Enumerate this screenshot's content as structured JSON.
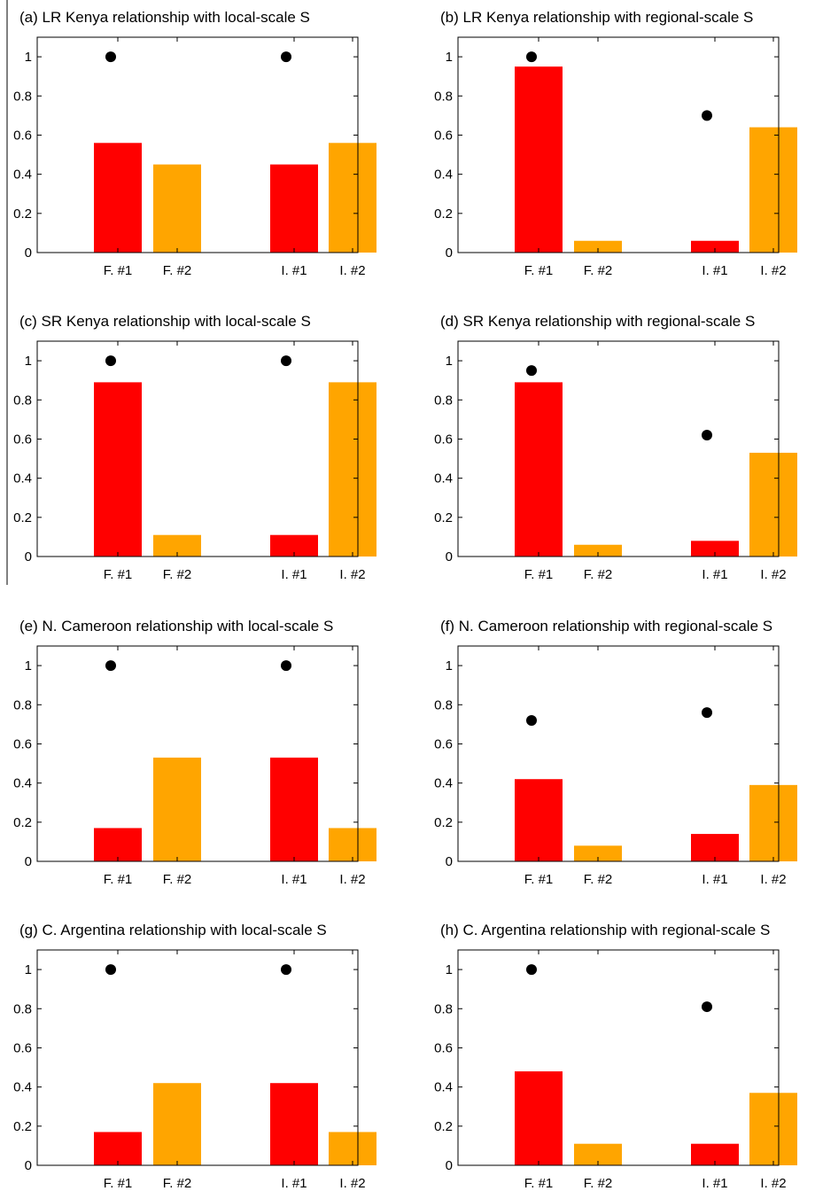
{
  "colors": {
    "bar_series_1": "#ff0000",
    "bar_series_2": "#ffa500",
    "dot": "#000000"
  },
  "chart_data": [
    {
      "type": "bar",
      "title": "(a) LR Kenya relationship with local-scale S",
      "categories": [
        "F. #1",
        "F. #2",
        "I. #1",
        "I. #2"
      ],
      "values": [
        0.56,
        0.45,
        0.45,
        0.56
      ],
      "bar_colors": [
        "#ff0000",
        "#ffa500",
        "#ff0000",
        "#ffa500"
      ],
      "dots": [
        {
          "between": "F. #1-F. #2",
          "value": 1.0
        },
        {
          "between": "I. #1-I. #2",
          "value": 1.0
        }
      ],
      "ylim": [
        0,
        1.1
      ],
      "yticks": [
        "0",
        "0.2",
        "0.4",
        "0.6",
        "0.8",
        "1"
      ]
    },
    {
      "type": "bar",
      "title": "(b) LR Kenya relationship with regional-scale S",
      "categories": [
        "F. #1",
        "F. #2",
        "I. #1",
        "I. #2"
      ],
      "values": [
        0.95,
        0.06,
        0.06,
        0.64
      ],
      "bar_colors": [
        "#ff0000",
        "#ffa500",
        "#ff0000",
        "#ffa500"
      ],
      "dots": [
        {
          "between": "F. #1-F. #2",
          "value": 1.0
        },
        {
          "between": "I. #1-I. #2",
          "value": 0.7
        }
      ],
      "ylim": [
        0,
        1.1
      ],
      "yticks": [
        "0",
        "0.2",
        "0.4",
        "0.6",
        "0.8",
        "1"
      ]
    },
    {
      "type": "bar",
      "title": "(c) SR Kenya relationship with local-scale S",
      "categories": [
        "F. #1",
        "F. #2",
        "I. #1",
        "I. #2"
      ],
      "values": [
        0.89,
        0.11,
        0.11,
        0.89
      ],
      "bar_colors": [
        "#ff0000",
        "#ffa500",
        "#ff0000",
        "#ffa500"
      ],
      "dots": [
        {
          "between": "F. #1-F. #2",
          "value": 1.0
        },
        {
          "between": "I. #1-I. #2",
          "value": 1.0
        }
      ],
      "ylim": [
        0,
        1.1
      ],
      "yticks": [
        "0",
        "0.2",
        "0.4",
        "0.6",
        "0.8",
        "1"
      ]
    },
    {
      "type": "bar",
      "title": "(d) SR Kenya relationship with regional-scale S",
      "categories": [
        "F. #1",
        "F. #2",
        "I. #1",
        "I. #2"
      ],
      "values": [
        0.89,
        0.06,
        0.08,
        0.53
      ],
      "bar_colors": [
        "#ff0000",
        "#ffa500",
        "#ff0000",
        "#ffa500"
      ],
      "dots": [
        {
          "between": "F. #1-F. #2",
          "value": 0.95
        },
        {
          "between": "I. #1-I. #2",
          "value": 0.62
        }
      ],
      "ylim": [
        0,
        1.1
      ],
      "yticks": [
        "0",
        "0.2",
        "0.4",
        "0.6",
        "0.8",
        "1"
      ]
    },
    {
      "type": "bar",
      "title": "(e) N. Cameroon relationship with local-scale S",
      "categories": [
        "F. #1",
        "F. #2",
        "I. #1",
        "I. #2"
      ],
      "values": [
        0.17,
        0.53,
        0.53,
        0.17
      ],
      "bar_colors": [
        "#ff0000",
        "#ffa500",
        "#ff0000",
        "#ffa500"
      ],
      "dots": [
        {
          "between": "F. #1-F. #2",
          "value": 1.0
        },
        {
          "between": "I. #1-I. #2",
          "value": 1.0
        }
      ],
      "ylim": [
        0,
        1.1
      ],
      "yticks": [
        "0",
        "0.2",
        "0.4",
        "0.6",
        "0.8",
        "1"
      ]
    },
    {
      "type": "bar",
      "title": "(f) N. Cameroon relationship with regional-scale S",
      "categories": [
        "F. #1",
        "F. #2",
        "I. #1",
        "I. #2"
      ],
      "values": [
        0.42,
        0.08,
        0.14,
        0.39
      ],
      "bar_colors": [
        "#ff0000",
        "#ffa500",
        "#ff0000",
        "#ffa500"
      ],
      "dots": [
        {
          "between": "F. #1-F. #2",
          "value": 0.72
        },
        {
          "between": "I. #1-I. #2",
          "value": 0.76
        }
      ],
      "ylim": [
        0,
        1.1
      ],
      "yticks": [
        "0",
        "0.2",
        "0.4",
        "0.6",
        "0.8",
        "1"
      ]
    },
    {
      "type": "bar",
      "title": "(g) C. Argentina relationship with local-scale S",
      "categories": [
        "F. #1",
        "F. #2",
        "I. #1",
        "I. #2"
      ],
      "values": [
        0.17,
        0.42,
        0.42,
        0.17
      ],
      "bar_colors": [
        "#ff0000",
        "#ffa500",
        "#ff0000",
        "#ffa500"
      ],
      "dots": [
        {
          "between": "F. #1-F. #2",
          "value": 1.0
        },
        {
          "between": "I. #1-I. #2",
          "value": 1.0
        }
      ],
      "ylim": [
        0,
        1.1
      ],
      "yticks": [
        "0",
        "0.2",
        "0.4",
        "0.6",
        "0.8",
        "1"
      ]
    },
    {
      "type": "bar",
      "title": "(h) C. Argentina relationship with regional-scale S",
      "categories": [
        "F. #1",
        "F. #2",
        "I. #1",
        "I. #2"
      ],
      "values": [
        0.48,
        0.11,
        0.11,
        0.37
      ],
      "bar_colors": [
        "#ff0000",
        "#ffa500",
        "#ff0000",
        "#ffa500"
      ],
      "dots": [
        {
          "between": "F. #1-F. #2",
          "value": 1.0
        },
        {
          "between": "I. #1-I. #2",
          "value": 0.81
        }
      ],
      "ylim": [
        0,
        1.1
      ],
      "yticks": [
        "0",
        "0.2",
        "0.4",
        "0.6",
        "0.8",
        "1"
      ]
    }
  ]
}
